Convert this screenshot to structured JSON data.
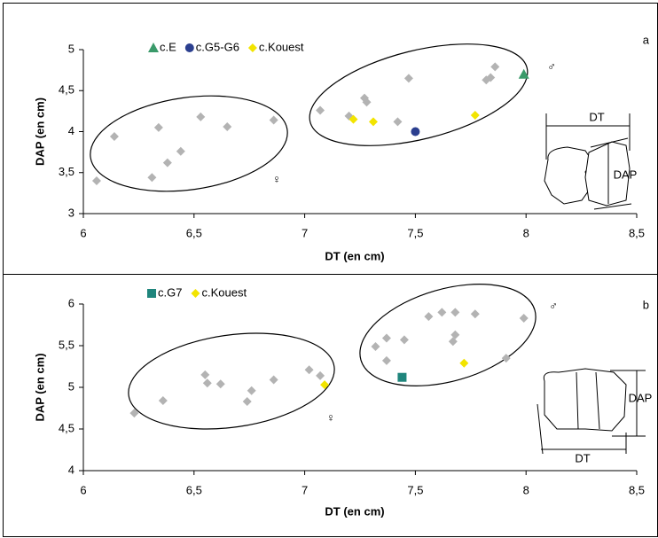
{
  "chart_data": [
    {
      "type": "scatter",
      "panel_label": "a",
      "xlabel": "DT (en cm)",
      "ylabel": "DAP (en cm)",
      "xlim": [
        6,
        8.5
      ],
      "xticks": [
        6,
        {
          "value": 6.5,
          "label": "6,5"
        },
        7,
        {
          "value": 7.5,
          "label": "7,5"
        },
        8,
        {
          "value": 8.5,
          "label": "8,5"
        }
      ],
      "ylim": [
        3,
        5
      ],
      "yticks": [
        3,
        {
          "value": 3.5,
          "label": "3,5"
        },
        4,
        {
          "value": 4.5,
          "label": "4,5"
        },
        5
      ],
      "annotations": [
        "♂",
        "♀",
        "DT",
        "DAP"
      ],
      "series": [
        {
          "marker": "diamond",
          "color": "#b3b3b3",
          "x": [
            6.06,
            6.14,
            6.31,
            6.34,
            6.38,
            6.44,
            6.53,
            6.65,
            6.86,
            7.07,
            7.2,
            7.27,
            7.28,
            7.42,
            7.47,
            7.82,
            7.84,
            7.86
          ],
          "y": [
            3.4,
            3.94,
            3.44,
            4.05,
            3.62,
            3.76,
            4.18,
            4.06,
            4.14,
            4.26,
            4.19,
            4.41,
            4.36,
            4.12,
            4.65,
            4.63,
            4.66,
            4.79
          ]
        },
        {
          "name": "c.E",
          "marker": "triangle",
          "color": "#3a9a6a",
          "x": [
            7.99
          ],
          "y": [
            4.7
          ]
        },
        {
          "name": "c.G5-G6",
          "marker": "circle",
          "color": "#2b3f8f",
          "x": [
            7.5
          ],
          "y": [
            4.0
          ]
        },
        {
          "name": "c.Kouest",
          "marker": "diamond",
          "color": "#f2e400",
          "x": [
            7.22,
            7.31,
            7.77
          ],
          "y": [
            4.15,
            4.12,
            4.2
          ]
        }
      ]
    },
    {
      "type": "scatter",
      "panel_label": "b",
      "xlabel": "DT (en cm)",
      "ylabel": "DAP (en cm)",
      "xlim": [
        6,
        8.5
      ],
      "xticks": [
        6,
        {
          "value": 6.5,
          "label": "6,5"
        },
        7,
        {
          "value": 7.5,
          "label": "7,5"
        },
        8,
        {
          "value": 8.5,
          "label": "8,5"
        }
      ],
      "ylim": [
        4,
        6
      ],
      "yticks": [
        4,
        {
          "value": 4.5,
          "label": "4,5"
        },
        5,
        {
          "value": 5.5,
          "label": "5,5"
        },
        6
      ],
      "annotations": [
        "♂",
        "♀",
        "DT",
        "DAP"
      ],
      "series": [
        {
          "marker": "diamond",
          "color": "#b3b3b3",
          "x": [
            6.23,
            6.36,
            6.55,
            6.56,
            6.62,
            6.74,
            6.76,
            6.86,
            7.02,
            7.07,
            7.32,
            7.37,
            7.37,
            7.45,
            7.56,
            7.62,
            7.68,
            7.67,
            7.68,
            7.77,
            7.91,
            7.99
          ],
          "y": [
            4.69,
            4.84,
            5.15,
            5.05,
            5.04,
            4.83,
            4.96,
            5.09,
            5.21,
            5.14,
            5.49,
            5.59,
            5.32,
            5.57,
            5.85,
            5.9,
            5.9,
            5.55,
            5.63,
            5.88,
            5.35,
            5.83
          ]
        },
        {
          "name": "c.G7",
          "marker": "square",
          "color": "#1f857c",
          "x": [
            7.44
          ],
          "y": [
            5.12
          ]
        },
        {
          "name": "c.Kouest",
          "marker": "diamond",
          "color": "#f2e400",
          "x": [
            7.09,
            7.72
          ],
          "y": [
            5.03,
            5.29
          ]
        }
      ]
    }
  ]
}
